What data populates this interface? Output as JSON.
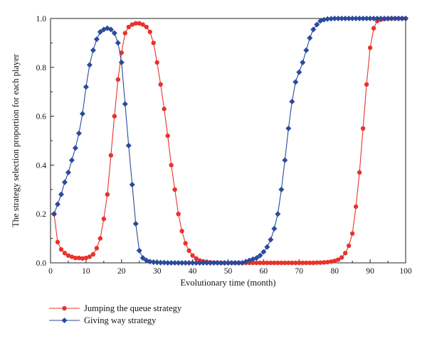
{
  "chart_data": {
    "type": "line",
    "xlabel": "Evolutionary time (month)",
    "ylabel": "The strategy selection proportion for each player",
    "xlim": [
      0,
      100
    ],
    "ylim": [
      0,
      1.0
    ],
    "xticks": [
      0,
      10,
      20,
      30,
      40,
      50,
      60,
      70,
      80,
      90,
      100
    ],
    "yticks": [
      0.0,
      0.2,
      0.4,
      0.6,
      0.8,
      1.0
    ],
    "xtick_labels": [
      "0",
      "10",
      "20",
      "30",
      "40",
      "50",
      "60",
      "70",
      "80",
      "90",
      "100"
    ],
    "ytick_labels": [
      "0.0",
      "0.2",
      "0.4",
      "0.6",
      "0.8",
      "1.0"
    ],
    "grid": false,
    "legend_position": "bottom-left, below plot",
    "series": [
      {
        "name": "Jumping the queue strategy",
        "color": "#e8332a",
        "marker": "circle",
        "x": [
          1,
          2,
          3,
          4,
          5,
          6,
          7,
          8,
          9,
          10,
          11,
          12,
          13,
          14,
          15,
          16,
          17,
          18,
          19,
          20,
          21,
          22,
          23,
          24,
          25,
          26,
          27,
          28,
          29,
          30,
          31,
          32,
          33,
          34,
          35,
          36,
          37,
          38,
          39,
          40,
          41,
          42,
          43,
          44,
          45,
          46,
          47,
          48,
          49,
          50,
          51,
          52,
          53,
          54,
          55,
          56,
          57,
          58,
          59,
          60,
          61,
          62,
          63,
          64,
          65,
          66,
          67,
          68,
          69,
          70,
          71,
          72,
          73,
          74,
          75,
          76,
          77,
          78,
          79,
          80,
          81,
          82,
          83,
          84,
          85,
          86,
          87,
          88,
          89,
          90,
          91,
          92,
          93,
          94,
          95,
          96,
          97,
          98,
          99,
          100
        ],
        "y": [
          0.2,
          0.085,
          0.055,
          0.04,
          0.03,
          0.025,
          0.02,
          0.02,
          0.018,
          0.02,
          0.025,
          0.035,
          0.06,
          0.1,
          0.18,
          0.28,
          0.44,
          0.6,
          0.75,
          0.86,
          0.94,
          0.965,
          0.975,
          0.98,
          0.98,
          0.975,
          0.965,
          0.945,
          0.9,
          0.82,
          0.73,
          0.63,
          0.52,
          0.4,
          0.3,
          0.2,
          0.13,
          0.08,
          0.05,
          0.03,
          0.018,
          0.01,
          0.006,
          0.004,
          0.002,
          0.001,
          0.001,
          0.0,
          0.0,
          0.0,
          0.0,
          0.0,
          0.0,
          0.0,
          0.0,
          0.0,
          0.0,
          0.0,
          0.0,
          0.0,
          0.0,
          0.0,
          0.0,
          0.0,
          0.0,
          0.0,
          0.0,
          0.0,
          0.0,
          0.0,
          0.0,
          0.0,
          0.0,
          0.0,
          0.001,
          0.001,
          0.002,
          0.003,
          0.005,
          0.008,
          0.013,
          0.022,
          0.04,
          0.07,
          0.12,
          0.23,
          0.37,
          0.55,
          0.73,
          0.88,
          0.96,
          0.99,
          0.995,
          0.998,
          0.999,
          1.0,
          1.0,
          1.0,
          1.0,
          1.0
        ]
      },
      {
        "name": "Giving way strategy",
        "color": "#2a4a9c",
        "marker": "diamond",
        "x": [
          1,
          2,
          3,
          4,
          5,
          6,
          7,
          8,
          9,
          10,
          11,
          12,
          13,
          14,
          15,
          16,
          17,
          18,
          19,
          20,
          21,
          22,
          23,
          24,
          25,
          26,
          27,
          28,
          29,
          30,
          31,
          32,
          33,
          34,
          35,
          36,
          37,
          38,
          39,
          40,
          41,
          42,
          43,
          44,
          45,
          46,
          47,
          48,
          49,
          50,
          51,
          52,
          53,
          54,
          55,
          56,
          57,
          58,
          59,
          60,
          61,
          62,
          63,
          64,
          65,
          66,
          67,
          68,
          69,
          70,
          71,
          72,
          73,
          74,
          75,
          76,
          77,
          78,
          79,
          80,
          81,
          82,
          83,
          84,
          85,
          86,
          87,
          88,
          89,
          90,
          91,
          92,
          93,
          94,
          95,
          96,
          97,
          98,
          99,
          100
        ],
        "y": [
          0.2,
          0.24,
          0.28,
          0.33,
          0.37,
          0.42,
          0.47,
          0.53,
          0.61,
          0.72,
          0.81,
          0.87,
          0.915,
          0.945,
          0.955,
          0.96,
          0.955,
          0.94,
          0.9,
          0.82,
          0.65,
          0.48,
          0.32,
          0.16,
          0.05,
          0.02,
          0.01,
          0.005,
          0.003,
          0.002,
          0.001,
          0.001,
          0.0,
          0.0,
          0.0,
          0.0,
          0.0,
          0.0,
          0.0,
          0.0,
          0.0,
          0.0,
          0.0,
          0.0,
          0.0,
          0.0,
          0.0,
          0.0,
          0.0,
          0.0,
          0.0,
          0.0,
          0.0,
          0.0,
          0.005,
          0.01,
          0.015,
          0.02,
          0.03,
          0.045,
          0.065,
          0.095,
          0.14,
          0.2,
          0.3,
          0.42,
          0.55,
          0.66,
          0.74,
          0.78,
          0.82,
          0.87,
          0.92,
          0.955,
          0.975,
          0.99,
          0.995,
          0.998,
          0.999,
          1.0,
          1.0,
          1.0,
          1.0,
          1.0,
          1.0,
          1.0,
          1.0,
          1.0,
          1.0,
          1.0,
          1.0,
          1.0,
          1.0,
          1.0,
          1.0,
          1.0,
          1.0,
          1.0,
          1.0,
          1.0
        ]
      }
    ]
  }
}
